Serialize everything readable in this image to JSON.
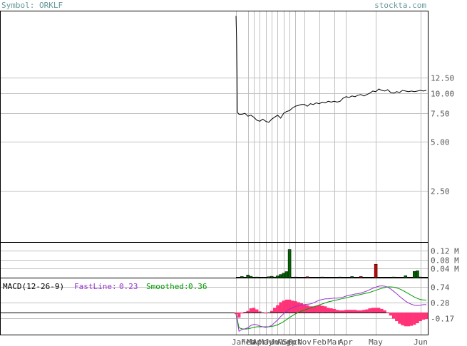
{
  "header": {
    "symbol_label": "Symbol: ORKLF",
    "site": "stockta.com"
  },
  "colors": {
    "background": "#ffffff",
    "frame": "#000000",
    "grid": "#c0c0c0",
    "header_text": "#669999",
    "axis_text": "#555555",
    "price_line": "#000000",
    "volume_up": "#006400",
    "volume_down": "#cc0000",
    "macd_fast": "#9933cc",
    "macd_smooth": "#009900",
    "macd_hist": "#ff3377"
  },
  "chart_data": [
    {
      "type": "line",
      "panel": "price",
      "y_ticks": [
        "12.50",
        "10.00",
        "7.50",
        "5.00",
        "2.50"
      ],
      "y_tick_values": [
        12.5,
        10.0,
        7.5,
        5.0,
        2.5
      ],
      "y_scale": "log",
      "ylim": [
        1.2,
        32
      ],
      "x_ticks": [
        "Jan",
        "Feb",
        "Mar",
        "Apr",
        "May",
        "Jun",
        "Jul",
        "Aug",
        "Sep",
        "Oct",
        "Nov",
        "Feb",
        "Mar",
        "Apr",
        "May",
        "Jun"
      ],
      "x_tick_positions": [
        0,
        4,
        6,
        8,
        10,
        12,
        14,
        16,
        18,
        20,
        23,
        28,
        33,
        37,
        47,
        62
      ],
      "x_range": [
        0,
        64
      ],
      "series": [
        {
          "x": [
            0,
            0.2,
            0.5,
            1,
            2,
            3,
            4,
            5,
            6,
            7,
            8,
            9,
            10,
            11,
            12,
            13,
            14,
            15,
            16,
            17,
            18,
            19,
            20,
            21,
            22,
            23,
            24,
            25,
            26,
            27,
            28,
            29,
            30,
            31,
            32,
            33,
            34,
            35,
            36,
            37,
            38,
            39,
            40,
            41,
            42,
            43,
            44,
            45,
            46,
            47,
            48,
            49,
            50,
            51,
            52,
            53,
            54,
            55,
            56,
            57,
            58,
            59,
            60,
            61,
            62,
            63,
            64
          ],
          "values": [
            30,
            22,
            7.6,
            7.4,
            7.4,
            7.5,
            7.2,
            7.3,
            7.1,
            6.8,
            6.7,
            6.9,
            6.7,
            6.6,
            6.9,
            7.1,
            7.3,
            7.0,
            7.5,
            7.7,
            7.8,
            8.1,
            8.3,
            8.4,
            8.5,
            8.5,
            8.3,
            8.6,
            8.5,
            8.7,
            8.6,
            8.8,
            8.7,
            8.9,
            8.8,
            8.9,
            8.8,
            8.9,
            9.3,
            9.5,
            9.4,
            9.6,
            9.5,
            9.7,
            9.8,
            9.6,
            9.8,
            10.0,
            10.3,
            10.2,
            10.6,
            10.4,
            10.3,
            10.5,
            10.1,
            10.0,
            10.2,
            10.1,
            10.4,
            10.3,
            10.2,
            10.3,
            10.2,
            10.3,
            10.4,
            10.3,
            10.4
          ]
        }
      ]
    },
    {
      "type": "bar",
      "panel": "volume",
      "y_ticks": [
        "0.12 M",
        "0.08 M",
        "0.04 M"
      ],
      "y_tick_values": [
        0.12,
        0.08,
        0.04
      ],
      "ylim": [
        0,
        0.15
      ],
      "bars": [
        {
          "x": 2,
          "value": 0.005,
          "color": "up"
        },
        {
          "x": 4,
          "value": 0.012,
          "color": "up"
        },
        {
          "x": 5,
          "value": 0.006,
          "color": "up"
        },
        {
          "x": 7,
          "value": 0.003,
          "color": "up"
        },
        {
          "x": 9,
          "value": 0.002,
          "color": "up"
        },
        {
          "x": 11,
          "value": 0.004,
          "color": "up"
        },
        {
          "x": 12,
          "value": 0.006,
          "color": "up"
        },
        {
          "x": 13,
          "value": 0.003,
          "color": "up"
        },
        {
          "x": 14,
          "value": 0.008,
          "color": "up"
        },
        {
          "x": 15,
          "value": 0.014,
          "color": "up"
        },
        {
          "x": 16,
          "value": 0.02,
          "color": "up"
        },
        {
          "x": 17,
          "value": 0.027,
          "color": "up"
        },
        {
          "x": 18,
          "value": 0.126,
          "color": "up"
        },
        {
          "x": 20,
          "value": 0.003,
          "color": "up"
        },
        {
          "x": 24,
          "value": 0.004,
          "color": "down"
        },
        {
          "x": 29,
          "value": 0.003,
          "color": "up"
        },
        {
          "x": 35,
          "value": 0.003,
          "color": "up"
        },
        {
          "x": 39,
          "value": 0.005,
          "color": "up"
        },
        {
          "x": 42,
          "value": 0.005,
          "color": "down"
        },
        {
          "x": 47,
          "value": 0.06,
          "color": "down"
        },
        {
          "x": 53,
          "value": 0.003,
          "color": "up"
        },
        {
          "x": 57,
          "value": 0.009,
          "color": "up"
        },
        {
          "x": 60,
          "value": 0.028,
          "color": "up"
        },
        {
          "x": 61,
          "value": 0.031,
          "color": "up"
        },
        {
          "x": 62,
          "value": 0.003,
          "color": "up"
        }
      ]
    },
    {
      "type": "line",
      "panel": "macd",
      "title": "MACD(12-26-9)",
      "fast_label": "FastLine:",
      "fast_value": "0.23",
      "smooth_label": "Smoothed:",
      "smooth_value": "0.36",
      "y_ticks": [
        "0.74",
        "0.28",
        "-0.17"
      ],
      "y_tick_values": [
        0.74,
        0.28,
        -0.17
      ],
      "ylim": [
        -0.65,
        1.0
      ],
      "zero_level": 0.0,
      "series": [
        {
          "name": "FastLine",
          "x": [
            0,
            1,
            2,
            3,
            4,
            5,
            6,
            7,
            8,
            9,
            10,
            11,
            12,
            13,
            14,
            15,
            16,
            17,
            18,
            19,
            20,
            21,
            22,
            23,
            24,
            25,
            26,
            27,
            28,
            29,
            30,
            31,
            32,
            33,
            34,
            35,
            36,
            37,
            38,
            39,
            40,
            41,
            42,
            43,
            44,
            45,
            46,
            47,
            48,
            49,
            50,
            51,
            52,
            53,
            54,
            55,
            56,
            57,
            58,
            59,
            60,
            61,
            62,
            63,
            64
          ],
          "values": [
            -0.05,
            -0.55,
            -0.5,
            -0.48,
            -0.45,
            -0.38,
            -0.35,
            -0.36,
            -0.4,
            -0.42,
            -0.44,
            -0.42,
            -0.38,
            -0.3,
            -0.22,
            -0.12,
            -0.04,
            0.04,
            0.1,
            0.14,
            0.18,
            0.2,
            0.22,
            0.23,
            0.24,
            0.25,
            0.28,
            0.32,
            0.36,
            0.38,
            0.4,
            0.4,
            0.41,
            0.42,
            0.42,
            0.43,
            0.45,
            0.48,
            0.5,
            0.52,
            0.54,
            0.55,
            0.57,
            0.6,
            0.63,
            0.67,
            0.71,
            0.74,
            0.77,
            0.78,
            0.77,
            0.74,
            0.69,
            0.62,
            0.55,
            0.47,
            0.4,
            0.33,
            0.28,
            0.24,
            0.21,
            0.2,
            0.21,
            0.23,
            0.23
          ]
        },
        {
          "name": "Smoothed",
          "x": [
            0,
            1,
            2,
            3,
            4,
            5,
            6,
            7,
            8,
            9,
            10,
            11,
            12,
            13,
            14,
            15,
            16,
            17,
            18,
            19,
            20,
            21,
            22,
            23,
            24,
            25,
            26,
            27,
            28,
            29,
            30,
            31,
            32,
            33,
            34,
            35,
            36,
            37,
            38,
            39,
            40,
            41,
            42,
            43,
            44,
            45,
            46,
            47,
            48,
            49,
            50,
            51,
            52,
            53,
            54,
            55,
            56,
            57,
            58,
            59,
            60,
            61,
            62,
            63,
            64
          ],
          "values": [
            -0.02,
            -0.45,
            -0.48,
            -0.49,
            -0.48,
            -0.46,
            -0.44,
            -0.42,
            -0.42,
            -0.42,
            -0.42,
            -0.42,
            -0.41,
            -0.39,
            -0.36,
            -0.32,
            -0.27,
            -0.21,
            -0.15,
            -0.09,
            -0.04,
            0.0,
            0.04,
            0.07,
            0.1,
            0.13,
            0.16,
            0.19,
            0.22,
            0.25,
            0.28,
            0.31,
            0.33,
            0.35,
            0.37,
            0.39,
            0.41,
            0.43,
            0.45,
            0.47,
            0.49,
            0.51,
            0.53,
            0.55,
            0.57,
            0.59,
            0.62,
            0.65,
            0.68,
            0.71,
            0.73,
            0.75,
            0.75,
            0.74,
            0.72,
            0.69,
            0.65,
            0.6,
            0.55,
            0.5,
            0.45,
            0.41,
            0.38,
            0.37,
            0.36
          ]
        }
      ]
    }
  ]
}
